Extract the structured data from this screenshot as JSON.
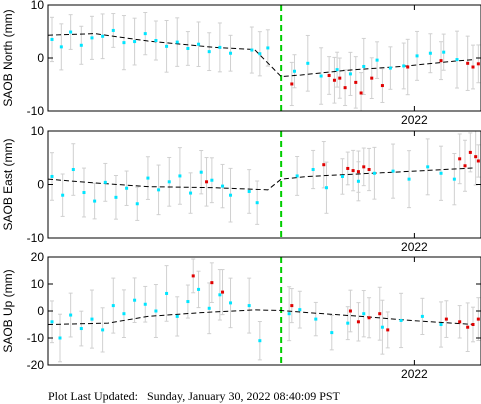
{
  "footer": {
    "prefix": "Plot Last Updated:",
    "timestamp": "Sunday, January 30, 2022 08:40:09 PST"
  },
  "colors": {
    "primary_points": "#00e5ff",
    "recent_points": "#e00000",
    "error_bars": "#d0d0d0",
    "event_line": "#00cc00",
    "trend_line": "#000000",
    "axes": "#000000"
  },
  "chart_data": [
    {
      "type": "scatter",
      "panel": "north",
      "ylabel": "SAOB North (mm)",
      "ylim": [
        -10,
        10
      ],
      "yticks": [
        -10,
        0,
        10
      ],
      "xlim": [
        2019.25,
        2022.5
      ],
      "xticks": [
        2022
      ],
      "xtick_labels": [
        "2022"
      ],
      "event_x": 2021.0,
      "grid": false,
      "trend": {
        "x": [
          2019.25,
          2019.6,
          2020.0,
          2020.5,
          2020.8,
          2021.0,
          2021.15,
          2021.5,
          2021.9,
          2022.3,
          2022.45
        ],
        "y": [
          4.3,
          4.6,
          3.2,
          2.0,
          1.6,
          -3.5,
          -3.2,
          -2.3,
          -1.6,
          -0.6,
          -0.3
        ]
      },
      "series": [
        {
          "color": "cyan",
          "x": [
            2019.28,
            2019.35,
            2019.42,
            2019.5,
            2019.58,
            2019.66,
            2019.74,
            2019.82,
            2019.9,
            2019.98,
            2020.06,
            2020.14,
            2020.22,
            2020.3,
            2020.38,
            2020.46,
            2020.54,
            2020.62,
            2020.78,
            2020.84,
            2020.9,
            2021.1,
            2021.2,
            2021.3,
            2021.42,
            2021.52,
            2021.62,
            2021.72,
            2021.82,
            2021.92,
            2022.02,
            2022.12,
            2022.22,
            2022.32
          ],
          "y": [
            3.5,
            2.1,
            4.9,
            2.4,
            3.8,
            4.1,
            5.2,
            2.9,
            3.1,
            4.6,
            3.3,
            2.2,
            3.0,
            1.8,
            2.6,
            1.2,
            2.0,
            0.9,
            1.5,
            0.8,
            1.9,
            -2.5,
            -1.0,
            -3.4,
            -2.2,
            -3.0,
            -1.6,
            -0.4,
            -1.9,
            -1.5,
            0.4,
            0.9,
            1.1,
            -0.3
          ]
        },
        {
          "color": "red",
          "x": [
            2021.08,
            2021.36,
            2021.4,
            2021.44,
            2021.48,
            2021.56,
            2021.6,
            2021.68,
            2021.76,
            2021.95,
            2022.2,
            2022.4,
            2022.44,
            2022.48
          ],
          "y": [
            -4.9,
            -3.3,
            -4.2,
            -3.8,
            -5.6,
            -4.6,
            -6.6,
            -3.8,
            -5.2,
            -1.7,
            -0.5,
            -1.0,
            -1.7,
            -1.1
          ]
        }
      ]
    },
    {
      "type": "scatter",
      "panel": "east",
      "ylabel": "SAOB East (mm)",
      "ylim": [
        -10,
        10
      ],
      "yticks": [
        -10,
        0,
        10
      ],
      "xlim": [
        2019.25,
        2022.5
      ],
      "xticks": [
        2022
      ],
      "xtick_labels": [
        "2022"
      ],
      "event_x": 2021.0,
      "grid": false,
      "trend": {
        "x": [
          2019.25,
          2019.6,
          2020.0,
          2020.5,
          2020.8,
          2020.9,
          2021.0,
          2021.2,
          2021.6,
          2022.0,
          2022.45
        ],
        "y": [
          1.0,
          0.3,
          -0.4,
          -0.6,
          -0.9,
          -1.0,
          1.0,
          1.5,
          2.0,
          2.5,
          3.1
        ]
      },
      "series": [
        {
          "color": "cyan",
          "x": [
            2019.28,
            2019.36,
            2019.44,
            2019.52,
            2019.6,
            2019.68,
            2019.76,
            2019.84,
            2019.92,
            2020.0,
            2020.08,
            2020.16,
            2020.24,
            2020.32,
            2020.4,
            2020.48,
            2020.56,
            2020.62,
            2020.76,
            2020.82,
            2021.12,
            2021.24,
            2021.34,
            2021.46,
            2021.58,
            2021.7,
            2021.84,
            2021.96,
            2022.1,
            2022.2,
            2022.3
          ],
          "y": [
            1.5,
            -2.0,
            2.8,
            -1.5,
            -3.1,
            0.4,
            -2.4,
            -0.7,
            -3.6,
            1.2,
            -1.0,
            0.5,
            1.6,
            -1.6,
            2.3,
            0.8,
            -0.3,
            -2.0,
            -1.3,
            -3.4,
            1.6,
            2.8,
            -0.6,
            1.5,
            0.6,
            2.1,
            2.5,
            1.0,
            3.3,
            2.1,
            1.0
          ]
        },
        {
          "color": "red",
          "x": [
            2020.44,
            2021.32,
            2021.5,
            2021.54,
            2021.58,
            2021.62,
            2021.66,
            2022.34,
            2022.38,
            2022.42,
            2022.46,
            2022.48
          ],
          "y": [
            0.5,
            3.7,
            3.0,
            2.6,
            2.4,
            3.3,
            2.8,
            4.8,
            3.5,
            6.0,
            5.2,
            4.4
          ]
        }
      ]
    },
    {
      "type": "scatter",
      "panel": "up",
      "ylabel": "SAOB Up (mm)",
      "ylim": [
        -20,
        20
      ],
      "yticks": [
        -20,
        -10,
        0,
        10,
        20
      ],
      "xlim": [
        2019.25,
        2022.5
      ],
      "xticks": [
        2022
      ],
      "xtick_labels": [
        "2022"
      ],
      "event_x": 2021.0,
      "grid": false,
      "trend": {
        "x": [
          2019.25,
          2019.7,
          2020.0,
          2020.4,
          2020.8,
          2021.0,
          2021.2,
          2021.6,
          2022.0,
          2022.45
        ],
        "y": [
          -5.0,
          -4.5,
          -2.0,
          -0.6,
          0.4,
          0.2,
          -0.6,
          -2.0,
          -3.6,
          -5.0
        ]
      },
      "series": [
        {
          "color": "cyan",
          "x": [
            2019.28,
            2019.34,
            2019.42,
            2019.5,
            2019.58,
            2019.66,
            2019.74,
            2019.82,
            2019.9,
            2019.98,
            2020.06,
            2020.14,
            2020.22,
            2020.3,
            2020.38,
            2020.46,
            2020.54,
            2020.62,
            2020.76,
            2020.84,
            2021.06,
            2021.14,
            2021.26,
            2021.38,
            2021.5,
            2021.62,
            2021.76,
            2021.9,
            2022.06,
            2022.2
          ],
          "y": [
            -4.0,
            -10.0,
            -1.5,
            -6.5,
            -3.0,
            -7.0,
            2.0,
            -1.0,
            4.0,
            2.5,
            0.0,
            6.5,
            -2.0,
            3.5,
            8.0,
            1.0,
            6.0,
            3.0,
            2.0,
            -11.0,
            -1.0,
            0.5,
            -3.0,
            -8.0,
            -4.5,
            -1.0,
            -6.0,
            -3.5,
            -2.0,
            -5.0
          ]
        },
        {
          "color": "red",
          "x": [
            2020.34,
            2020.48,
            2020.56,
            2021.08,
            2021.52,
            2021.58,
            2021.66,
            2021.74,
            2021.8,
            2022.24,
            2022.34,
            2022.4,
            2022.44,
            2022.48
          ],
          "y": [
            13.0,
            10.5,
            7.0,
            2.0,
            0.0,
            -4.0,
            -2.5,
            -1.0,
            -7.0,
            -3.0,
            -4.0,
            -6.0,
            -5.0,
            -3.0
          ]
        }
      ]
    }
  ]
}
